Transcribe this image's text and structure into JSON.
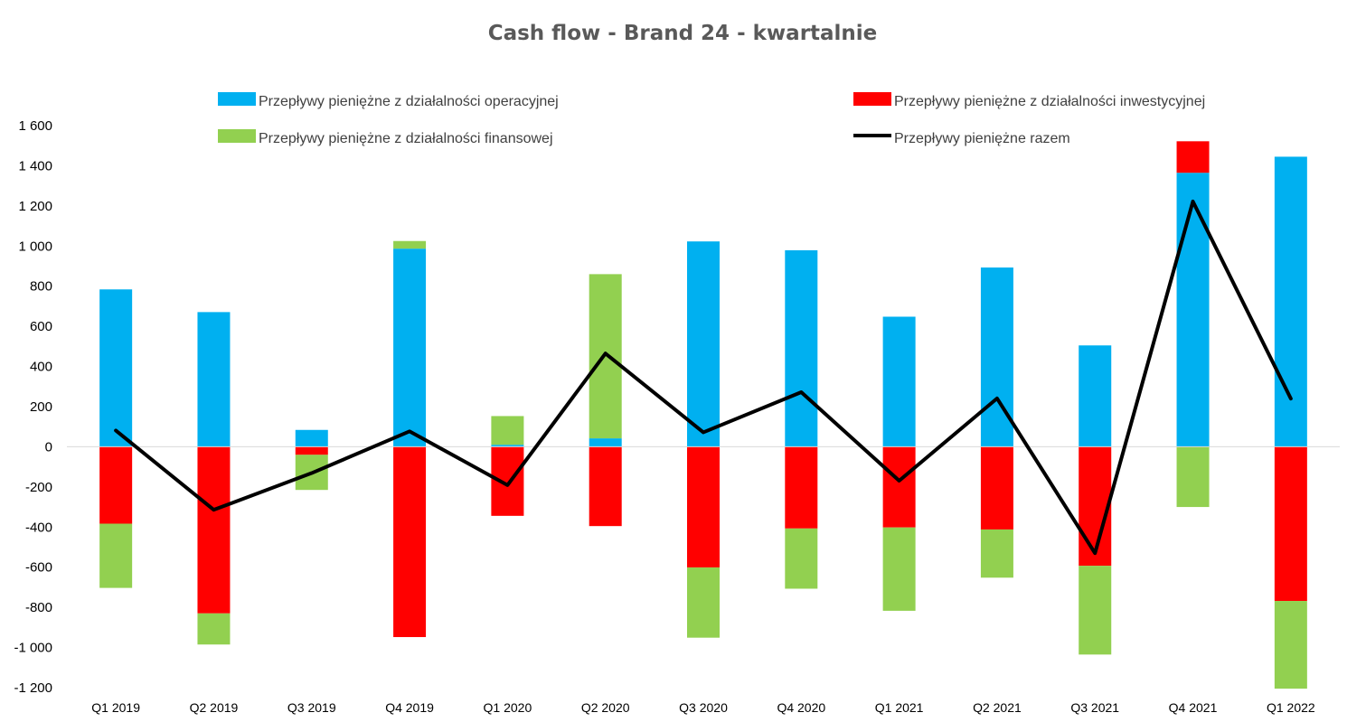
{
  "chart_data": {
    "type": "bar",
    "stacked": true,
    "title": "Cash flow - Brand 24 - kwartalnie",
    "xlabel": "",
    "ylabel": "",
    "ylim": [
      -1200,
      1600
    ],
    "yticks": [
      1600,
      1400,
      1200,
      1000,
      800,
      600,
      400,
      200,
      0,
      -200,
      -400,
      -600,
      -800,
      -1000,
      -1200
    ],
    "ytick_labels": [
      "1 600",
      "1 400",
      "1 200",
      "1 000",
      "800",
      "600",
      "400",
      "200",
      "0",
      "-200",
      "-400",
      "-600",
      "-800",
      "-1 000",
      "-1 200"
    ],
    "grid": false,
    "legend_position": "top",
    "categories": [
      "Q1 2019",
      "Q2 2019",
      "Q3 2019",
      "Q4 2019",
      "Q1 2020",
      "Q2 2020",
      "Q3 2020",
      "Q4 2020",
      "Q1 2021",
      "Q2 2021",
      "Q3 2021",
      "Q4 2021",
      "Q1 2022"
    ],
    "series": [
      {
        "name": "Przepływy pieniężne z działalności operacyjnej",
        "kind": "bar",
        "color": "#00B0F0",
        "values": [
          784,
          671,
          84,
          987,
          10,
          42,
          1023,
          979,
          648,
          893,
          505,
          1365,
          1445
        ]
      },
      {
        "name": "Przepływy pieniężne z działalności inwestycyjnej",
        "kind": "bar",
        "color": "#FF0000",
        "values": [
          -383,
          -830,
          -40,
          -948,
          -344,
          -395,
          -601,
          -407,
          -402,
          -412,
          -593,
          157,
          -768
        ]
      },
      {
        "name": "Przepływy pieniężne z działalności finansowej",
        "kind": "bar",
        "color": "#92D050",
        "values": [
          -320,
          -155,
          -175,
          38,
          143,
          818,
          -350,
          -300,
          -415,
          -240,
          -442,
          -300,
          -437
        ]
      },
      {
        "name": "Przepływy pieniężne razem",
        "kind": "line",
        "color": "#000000",
        "values": [
          81,
          -314,
          -131,
          77,
          -191,
          465,
          72,
          272,
          -169,
          241,
          -530,
          1222,
          240
        ]
      }
    ]
  }
}
